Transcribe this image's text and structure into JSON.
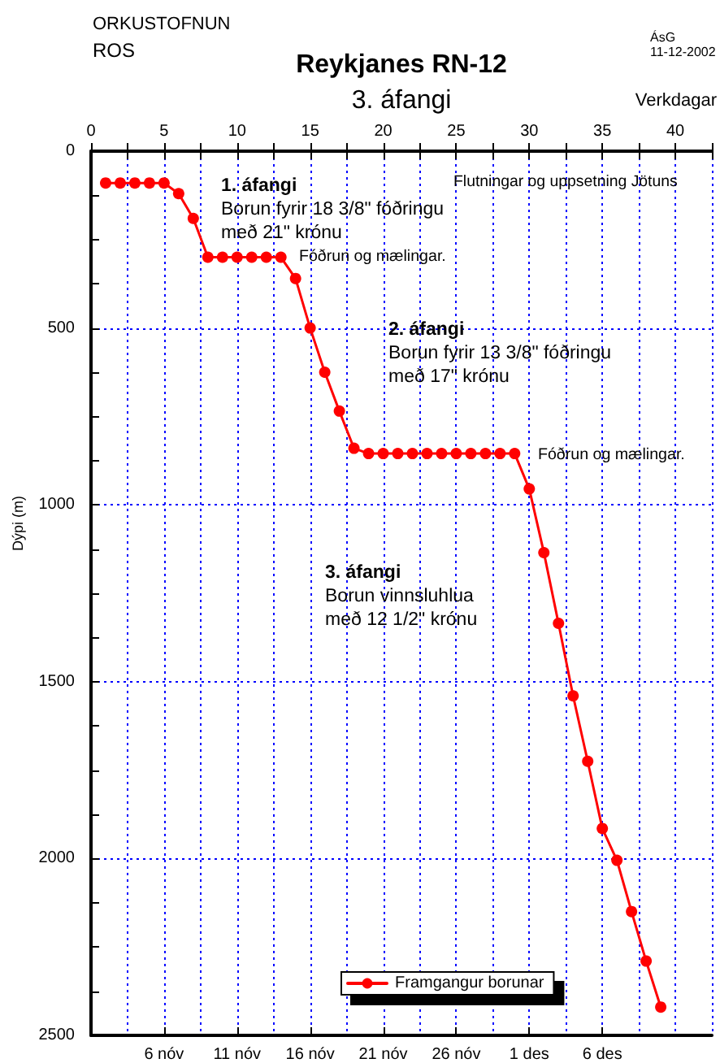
{
  "chart_data": {
    "type": "line",
    "title": "Reykjanes RN-12",
    "subtitle": "3. áfangi",
    "xlabel": "Verkdagar",
    "ylabel": "Dýpi (m)",
    "annotations": [
      "ORKUSTOFNUN",
      "ROS",
      "ÁsG",
      "11-12-2002",
      "1. áfangi\nBorun fyrir 18 3/8\" fóðringu\nmeð 21\" krónu",
      "Fóðrun og mælingar.",
      "Flutningar og uppsetning Jötuns",
      "2. áfangi\nBorun fyrir 13 3/8\" fóðringu\nmeð 17\" krónu",
      "Fóðrun og mælingar.",
      "3. áfangi\nBorun vinnsluhlua\nmeð 12 1/2\" krónu"
    ],
    "x": [
      1,
      2,
      3,
      4,
      5,
      6,
      7,
      8,
      9,
      10,
      11,
      12,
      13,
      14,
      15,
      16,
      17,
      18,
      19,
      20,
      21,
      22,
      23,
      24,
      25,
      26,
      27,
      28,
      29,
      30,
      31,
      32,
      33,
      34,
      35,
      36,
      37,
      38,
      39
    ],
    "series": [
      {
        "name": "Framgangur borunar",
        "color": "#ff0000",
        "values": [
          90,
          90,
          90,
          90,
          90,
          120,
          190,
          300,
          300,
          300,
          300,
          300,
          300,
          360,
          500,
          625,
          735,
          840,
          855,
          855,
          855,
          855,
          855,
          855,
          855,
          855,
          855,
          855,
          855,
          955,
          1135,
          1335,
          1540,
          1725,
          1915,
          2005,
          2150,
          2290,
          2420
        ]
      }
    ],
    "xlim": [
      0,
      42.5
    ],
    "xticks": [
      0,
      {
        "value": 2.5,
        "label": null
      },
      5,
      {
        "value": 7.5,
        "label": null
      },
      10,
      {
        "value": 12.5,
        "label": null
      },
      15,
      {
        "value": 17.5,
        "label": null
      },
      20,
      {
        "value": 22.5,
        "label": null
      },
      25,
      {
        "value": 27.5,
        "label": null
      },
      30,
      {
        "value": 32.5,
        "label": null
      },
      35,
      {
        "value": 37.5,
        "label": null
      },
      40,
      {
        "value": 42.5,
        "label": null
      }
    ],
    "x2lim": [
      "--11-01",
      "--12-13T12:00"
    ],
    "x2ticks": [
      {
        "value": "--11-06",
        "label": "6 nóv"
      },
      {
        "value": "--11-11",
        "label": "11 nóv"
      },
      {
        "value": "--11-16",
        "label": "16 nóv"
      },
      {
        "value": "--11-21",
        "label": "21 nóv"
      },
      {
        "value": "--11-26",
        "label": "26 nóv"
      },
      {
        "value": "--12-01",
        "label": "1 des"
      },
      {
        "value": "--12-06",
        "label": "6 des"
      }
    ],
    "ylim": [
      2500,
      0
    ],
    "yticks": [
      0,
      {
        "value": 125,
        "label": null
      },
      {
        "value": 250,
        "label": null
      },
      {
        "value": 375,
        "label": null
      },
      500,
      {
        "value": 625,
        "label": null
      },
      {
        "value": 750,
        "label": null
      },
      {
        "value": 875,
        "label": null
      },
      1000,
      {
        "value": 1125,
        "label": null
      },
      {
        "value": 1250,
        "label": null
      },
      {
        "value": 1375,
        "label": null
      },
      1500,
      {
        "value": 1625,
        "label": null
      },
      {
        "value": 1750,
        "label": null
      },
      {
        "value": 1875,
        "label": null
      },
      2000,
      {
        "value": 2125,
        "label": null
      },
      {
        "value": 2250,
        "label": null
      },
      {
        "value": 2375,
        "label": null
      },
      2500
    ],
    "grid": true,
    "legend": "bottom",
    "marker": "circle",
    "line_style": "solid"
  }
}
